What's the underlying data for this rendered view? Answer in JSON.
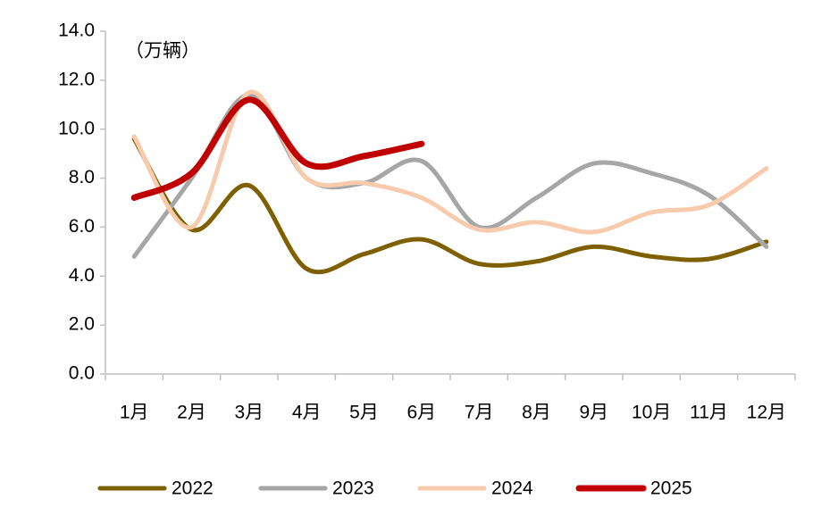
{
  "chart_data": {
    "type": "line",
    "annotation": "（万辆）",
    "categories": [
      "1月",
      "2月",
      "3月",
      "4月",
      "5月",
      "6月",
      "7月",
      "8月",
      "9月",
      "10月",
      "11月",
      "12月"
    ],
    "series": [
      {
        "name": "2022",
        "color": "#7f6000",
        "values": [
          9.6,
          5.9,
          7.7,
          4.3,
          4.9,
          5.5,
          4.5,
          4.6,
          5.2,
          4.8,
          4.7,
          5.4
        ]
      },
      {
        "name": "2023",
        "color": "#a6a6a6",
        "values": [
          4.8,
          8.0,
          11.4,
          8.0,
          7.8,
          8.7,
          6.0,
          7.2,
          8.6,
          8.2,
          7.3,
          5.2
        ]
      },
      {
        "name": "2024",
        "color": "#f8cbad",
        "values": [
          9.7,
          6.0,
          11.5,
          8.0,
          7.8,
          7.2,
          5.9,
          6.2,
          5.8,
          6.6,
          6.9,
          8.4
        ]
      },
      {
        "name": "2025",
        "color": "#c00000",
        "values": [
          7.2,
          8.2,
          11.2,
          8.6,
          8.9,
          9.4,
          null,
          null,
          null,
          null,
          null,
          null
        ]
      }
    ],
    "ylim": [
      0,
      14
    ],
    "yticks": [
      {
        "value": 0,
        "label": "0.0"
      },
      {
        "value": 2,
        "label": "2.0"
      },
      {
        "value": 4,
        "label": "4.0"
      },
      {
        "value": 6,
        "label": "6.0"
      },
      {
        "value": 8,
        "label": "8.0"
      },
      {
        "value": 10,
        "label": "10.0"
      },
      {
        "value": 12,
        "label": "12.0"
      },
      {
        "value": 14,
        "label": "14.0"
      }
    ],
    "grid": false,
    "legend": "bottom"
  }
}
